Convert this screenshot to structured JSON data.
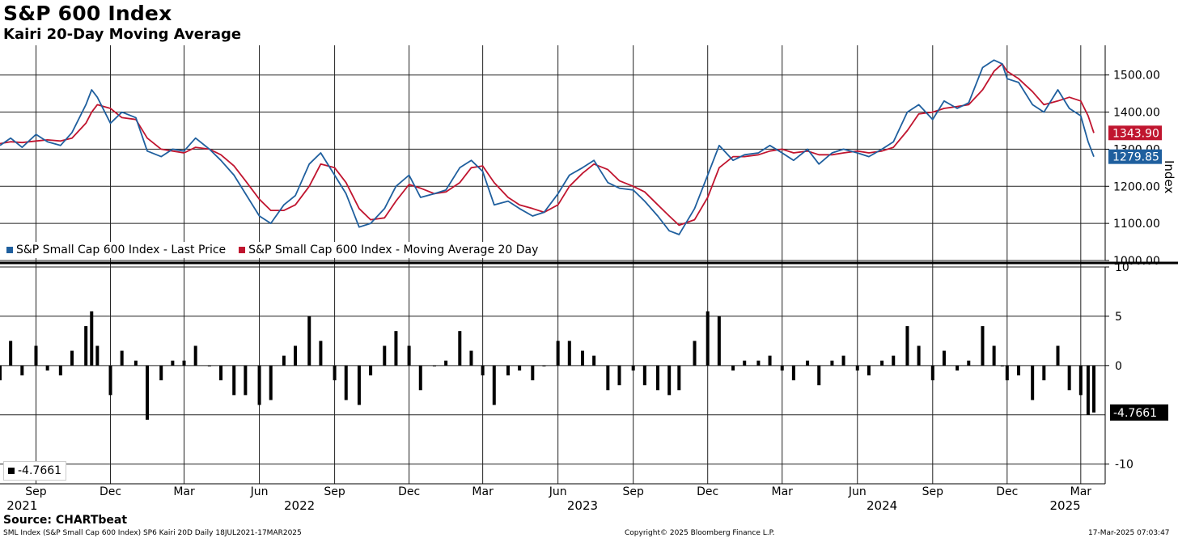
{
  "title": "S&P 600 Index",
  "subtitle": "Kairi 20-Day Moving Average",
  "source": "Source: CHARTbeat",
  "footer_left": "SML Index (S&P Small Cap 600 Index) SP6 Kairi 20D  Daily 18JUL2021-17MAR2025",
  "footer_center": "Copyright© 2025 Bloomberg Finance L.P.",
  "footer_right": "17-Mar-2025 07:03:47",
  "colors": {
    "price": "#1f5f9e",
    "ma": "#c0152f",
    "kairi": "#000000"
  },
  "chart_data": [
    {
      "type": "line",
      "ylabel": "Index",
      "ylim": [
        1000,
        1580
      ],
      "yticks": [
        "1000.00",
        "1100.00",
        "1200.00",
        "1300.00",
        "1400.00",
        "1500.00"
      ],
      "x_month_labels": [
        "Sep",
        "Dec",
        "Mar",
        "Jun",
        "Sep",
        "Dec",
        "Mar",
        "Jun",
        "Sep",
        "Dec",
        "Mar",
        "Jun",
        "Sep",
        "Dec",
        "Mar"
      ],
      "x_year_labels": [
        "2021",
        "2022",
        "2023",
        "2024",
        "2025"
      ],
      "x": [
        "2021-07-19",
        "2021-08-01",
        "2021-08-15",
        "2021-09-01",
        "2021-09-15",
        "2021-10-01",
        "2021-10-15",
        "2021-11-01",
        "2021-11-08",
        "2021-11-15",
        "2021-12-01",
        "2021-12-15",
        "2022-01-01",
        "2022-01-15",
        "2022-02-01",
        "2022-02-15",
        "2022-03-01",
        "2022-03-15",
        "2022-04-01",
        "2022-04-15",
        "2022-05-01",
        "2022-05-15",
        "2022-06-01",
        "2022-06-15",
        "2022-07-01",
        "2022-07-15",
        "2022-08-01",
        "2022-08-15",
        "2022-09-01",
        "2022-09-15",
        "2022-10-01",
        "2022-10-15",
        "2022-11-01",
        "2022-11-15",
        "2022-12-01",
        "2022-12-15",
        "2023-01-01",
        "2023-01-15",
        "2023-02-01",
        "2023-02-15",
        "2023-03-01",
        "2023-03-15",
        "2023-04-01",
        "2023-04-15",
        "2023-05-01",
        "2023-05-15",
        "2023-06-01",
        "2023-06-15",
        "2023-07-01",
        "2023-07-15",
        "2023-08-01",
        "2023-08-15",
        "2023-09-01",
        "2023-09-15",
        "2023-10-01",
        "2023-10-15",
        "2023-10-27",
        "2023-11-15",
        "2023-12-01",
        "2023-12-15",
        "2024-01-01",
        "2024-01-15",
        "2024-02-01",
        "2024-02-15",
        "2024-03-01",
        "2024-03-15",
        "2024-04-01",
        "2024-04-15",
        "2024-05-01",
        "2024-05-15",
        "2024-06-01",
        "2024-06-15",
        "2024-07-01",
        "2024-07-15",
        "2024-08-01",
        "2024-08-15",
        "2024-09-01",
        "2024-09-15",
        "2024-10-01",
        "2024-10-15",
        "2024-11-01",
        "2024-11-15",
        "2024-11-25",
        "2024-12-01",
        "2024-12-15",
        "2025-01-01",
        "2025-01-15",
        "2025-02-01",
        "2025-02-15",
        "2025-03-01",
        "2025-03-10",
        "2025-03-17"
      ],
      "series": [
        {
          "name": "S&P Small Cap 600 Index - Last Price",
          "last_label": "1279.85",
          "values": [
            1310,
            1330,
            1305,
            1340,
            1320,
            1310,
            1345,
            1420,
            1460,
            1440,
            1370,
            1400,
            1385,
            1295,
            1280,
            1300,
            1295,
            1330,
            1300,
            1270,
            1230,
            1180,
            1120,
            1100,
            1150,
            1175,
            1260,
            1290,
            1230,
            1180,
            1090,
            1100,
            1140,
            1200,
            1230,
            1170,
            1180,
            1190,
            1250,
            1270,
            1240,
            1150,
            1160,
            1140,
            1120,
            1130,
            1180,
            1230,
            1250,
            1270,
            1210,
            1195,
            1190,
            1160,
            1120,
            1080,
            1070,
            1140,
            1230,
            1310,
            1270,
            1285,
            1290,
            1310,
            1290,
            1270,
            1300,
            1260,
            1290,
            1300,
            1290,
            1280,
            1300,
            1320,
            1400,
            1420,
            1380,
            1430,
            1410,
            1425,
            1520,
            1540,
            1530,
            1490,
            1480,
            1420,
            1400,
            1460,
            1410,
            1390,
            1320,
            1279.85
          ]
        },
        {
          "name": "S&P Small Cap 600 Index - Moving Average 20 Day",
          "last_label": "1343.90",
          "values": [
            1315,
            1320,
            1318,
            1322,
            1325,
            1322,
            1330,
            1370,
            1400,
            1420,
            1410,
            1385,
            1380,
            1330,
            1300,
            1295,
            1290,
            1305,
            1300,
            1285,
            1255,
            1215,
            1165,
            1135,
            1135,
            1150,
            1200,
            1260,
            1250,
            1210,
            1140,
            1110,
            1115,
            1160,
            1205,
            1195,
            1180,
            1185,
            1210,
            1250,
            1255,
            1210,
            1170,
            1150,
            1140,
            1130,
            1150,
            1200,
            1235,
            1260,
            1245,
            1215,
            1200,
            1185,
            1150,
            1120,
            1095,
            1110,
            1170,
            1250,
            1280,
            1280,
            1285,
            1295,
            1300,
            1290,
            1295,
            1285,
            1285,
            1290,
            1295,
            1290,
            1295,
            1305,
            1350,
            1395,
            1400,
            1410,
            1415,
            1420,
            1460,
            1510,
            1530,
            1510,
            1490,
            1455,
            1420,
            1430,
            1440,
            1430,
            1390,
            1343.9
          ]
        }
      ]
    },
    {
      "type": "bar",
      "name": "Kairi 20-Day",
      "ylim": [
        -12,
        10
      ],
      "yticks": [
        "10",
        "5",
        "0",
        "-10"
      ],
      "last_label": "-4.7661",
      "legend_label": "-4.7661",
      "x": [
        "2021-07-19",
        "2021-08-01",
        "2021-08-15",
        "2021-09-01",
        "2021-09-15",
        "2021-10-01",
        "2021-10-15",
        "2021-11-01",
        "2021-11-08",
        "2021-11-15",
        "2021-12-01",
        "2021-12-15",
        "2022-01-01",
        "2022-01-15",
        "2022-02-01",
        "2022-02-15",
        "2022-03-01",
        "2022-03-15",
        "2022-04-01",
        "2022-04-15",
        "2022-05-01",
        "2022-05-15",
        "2022-06-01",
        "2022-06-15",
        "2022-07-01",
        "2022-07-15",
        "2022-08-01",
        "2022-08-15",
        "2022-09-01",
        "2022-09-15",
        "2022-10-01",
        "2022-10-15",
        "2022-11-01",
        "2022-11-15",
        "2022-12-01",
        "2022-12-15",
        "2023-01-01",
        "2023-01-15",
        "2023-02-01",
        "2023-02-15",
        "2023-03-01",
        "2023-03-15",
        "2023-04-01",
        "2023-04-15",
        "2023-05-01",
        "2023-05-15",
        "2023-06-01",
        "2023-06-15",
        "2023-07-01",
        "2023-07-15",
        "2023-08-01",
        "2023-08-15",
        "2023-09-01",
        "2023-09-15",
        "2023-10-01",
        "2023-10-15",
        "2023-10-27",
        "2023-11-15",
        "2023-12-01",
        "2023-12-15",
        "2024-01-01",
        "2024-01-15",
        "2024-02-01",
        "2024-02-15",
        "2024-03-01",
        "2024-03-15",
        "2024-04-01",
        "2024-04-15",
        "2024-05-01",
        "2024-05-15",
        "2024-06-01",
        "2024-06-15",
        "2024-07-01",
        "2024-07-15",
        "2024-08-01",
        "2024-08-15",
        "2024-09-01",
        "2024-09-15",
        "2024-10-01",
        "2024-10-15",
        "2024-11-01",
        "2024-11-15",
        "2024-11-25",
        "2024-12-01",
        "2024-12-15",
        "2025-01-01",
        "2025-01-15",
        "2025-02-01",
        "2025-02-15",
        "2025-03-01",
        "2025-03-10",
        "2025-03-17"
      ],
      "values": [
        -1.5,
        2.5,
        -1.0,
        2.0,
        -0.5,
        -1.0,
        1.5,
        4.0,
        5.5,
        2.0,
        -3.0,
        1.5,
        0.5,
        -5.5,
        -1.5,
        0.5,
        0.5,
        2.0,
        0.0,
        -1.5,
        -3.0,
        -3.0,
        -4.0,
        -3.5,
        1.0,
        2.0,
        5.0,
        2.5,
        -1.5,
        -3.5,
        -4.0,
        -1.0,
        2.0,
        3.5,
        2.0,
        -2.5,
        0.0,
        0.5,
        3.5,
        1.5,
        -1.0,
        -4.0,
        -1.0,
        -0.5,
        -1.5,
        0.0,
        2.5,
        2.5,
        1.5,
        1.0,
        -2.5,
        -2.0,
        -0.5,
        -2.0,
        -2.5,
        -3.0,
        -2.5,
        2.5,
        5.5,
        5.0,
        -0.5,
        0.5,
        0.5,
        1.0,
        -0.5,
        -1.5,
        0.5,
        -2.0,
        0.5,
        1.0,
        -0.5,
        -1.0,
        0.5,
        1.0,
        4.0,
        2.0,
        -1.5,
        1.5,
        -0.5,
        0.5,
        4.0,
        2.0,
        0.0,
        -1.5,
        -1.0,
        -3.5,
        -1.5,
        2.0,
        -2.5,
        -3.0,
        -5.0,
        -4.7661
      ]
    }
  ]
}
